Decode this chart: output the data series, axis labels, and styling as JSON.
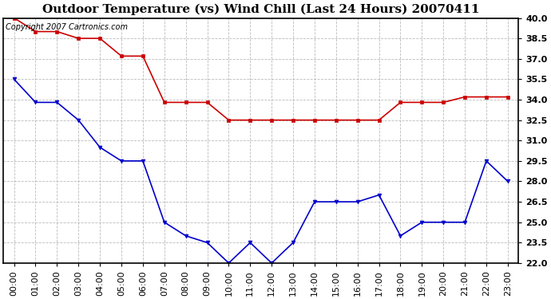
{
  "title": "Outdoor Temperature (vs) Wind Chill (Last 24 Hours) 20070411",
  "copyright_text": "Copyright 2007 Cartronics.com",
  "x_labels": [
    "00:00",
    "01:00",
    "02:00",
    "03:00",
    "04:00",
    "05:00",
    "06:00",
    "07:00",
    "08:00",
    "09:00",
    "10:00",
    "11:00",
    "12:00",
    "13:00",
    "14:00",
    "15:00",
    "16:00",
    "17:00",
    "18:00",
    "19:00",
    "20:00",
    "21:00",
    "22:00",
    "23:00"
  ],
  "temp_data": [
    40.0,
    39.0,
    39.0,
    38.5,
    38.5,
    37.2,
    37.2,
    33.8,
    33.8,
    33.8,
    32.5,
    32.5,
    32.5,
    32.5,
    32.5,
    32.5,
    32.5,
    32.5,
    33.8,
    33.8,
    33.8,
    34.2,
    34.2,
    34.2
  ],
  "windchill_data": [
    35.5,
    33.8,
    33.8,
    32.5,
    30.5,
    29.5,
    29.5,
    25.0,
    24.0,
    23.5,
    22.0,
    23.5,
    22.0,
    23.5,
    26.5,
    26.5,
    26.5,
    27.0,
    24.0,
    25.0,
    25.0,
    25.0,
    29.5,
    28.0
  ],
  "temp_color": "#cc0000",
  "windchill_color": "#0000cc",
  "bg_color": "#ffffff",
  "plot_bg_color": "#ffffff",
  "grid_color": "#aaaaaa",
  "ylim_min": 22.0,
  "ylim_max": 40.0,
  "yticks": [
    22.0,
    23.5,
    25.0,
    26.5,
    28.0,
    29.5,
    31.0,
    32.5,
    34.0,
    35.5,
    37.0,
    38.5,
    40.0
  ],
  "title_fontsize": 11,
  "tick_fontsize": 8,
  "copyright_fontsize": 7
}
